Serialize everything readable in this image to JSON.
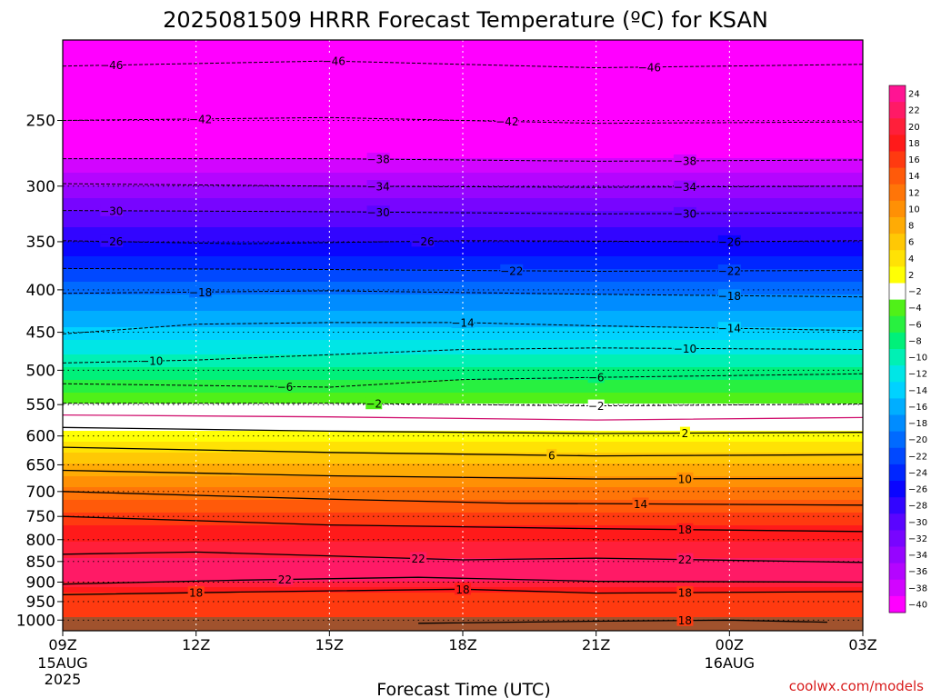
{
  "chart_data": {
    "type": "heatmap",
    "title": "2025081509 HRRR Forecast Temperature (ºC) for KSAN",
    "xlabel": "Forecast Time (UTC)",
    "ylabel": "",
    "credit": "coolwx.com/models",
    "x_ticks": [
      {
        "hour": 0,
        "label": "09Z",
        "sub1": "15AUG",
        "sub2": "2025"
      },
      {
        "hour": 3,
        "label": "12Z",
        "sub1": "",
        "sub2": ""
      },
      {
        "hour": 6,
        "label": "15Z",
        "sub1": "",
        "sub2": ""
      },
      {
        "hour": 9,
        "label": "18Z",
        "sub1": "",
        "sub2": ""
      },
      {
        "hour": 12,
        "label": "21Z",
        "sub1": "",
        "sub2": ""
      },
      {
        "hour": 15,
        "label": "00Z",
        "sub1": "16AUG",
        "sub2": ""
      },
      {
        "hour": 18,
        "label": "03Z",
        "sub1": "",
        "sub2": ""
      }
    ],
    "xlim": [
      0,
      18
    ],
    "y_ticks": [
      250,
      300,
      350,
      400,
      450,
      500,
      550,
      600,
      650,
      700,
      750,
      800,
      850,
      900,
      950,
      1000
    ],
    "ylim_pressure_hPa": [
      200,
      1030
    ],
    "y_scale": "log-pressure",
    "grid": true,
    "colorbar": {
      "levels": [
        24,
        22,
        20,
        18,
        16,
        14,
        12,
        10,
        8,
        6,
        4,
        2,
        -2,
        -4,
        -6,
        -8,
        -10,
        -12,
        -14,
        -16,
        -18,
        -20,
        -22,
        -24,
        -26,
        -28,
        -30,
        -32,
        -34,
        -36,
        -38,
        -40
      ],
      "labels": [
        "24",
        "22",
        "20",
        "18",
        "16",
        "14",
        "12",
        "10",
        "8",
        "6",
        "4",
        "2",
        "−2",
        "−4",
        "−6",
        "−8",
        "−10",
        "−12",
        "−14",
        "−16",
        "−18",
        "−20",
        "−22",
        "−24",
        "−26",
        "−28",
        "−30",
        "−32",
        "−34",
        "−36",
        "−38",
        "−40"
      ],
      "colors": [
        "#ff1493",
        "#ff1a66",
        "#ff1f3a",
        "#ff1a1a",
        "#ff3a10",
        "#ff5a0a",
        "#ff7508",
        "#ff9005",
        "#ffab05",
        "#ffc805",
        "#ffe205",
        "#ffff05",
        "#ffffff",
        "#50f018",
        "#28f040",
        "#00f07a",
        "#00f0b4",
        "#00e6e6",
        "#00d2ff",
        "#00aeff",
        "#008cff",
        "#006aff",
        "#0048ff",
        "#0026ff",
        "#0a05ff",
        "#3205ff",
        "#5a05ff",
        "#7805ff",
        "#9605ff",
        "#b405ff",
        "#d205ff",
        "#ff00ff"
      ]
    },
    "isotherms": [
      {
        "temp": -46,
        "label": "−46",
        "style": "dashed",
        "points": [
          [
            0,
            215
          ],
          [
            6,
            212
          ],
          [
            12,
            216
          ],
          [
            18,
            214
          ]
        ],
        "label_hours": [
          1.1,
          6.1,
          13.2
        ]
      },
      {
        "temp": -42,
        "label": "−42",
        "style": "dashed",
        "points": [
          [
            0,
            250
          ],
          [
            6,
            248
          ],
          [
            12,
            252
          ],
          [
            18,
            251
          ]
        ],
        "label_hours": [
          3.1,
          10.0
        ]
      },
      {
        "temp": -38,
        "label": "−38",
        "style": "dashed",
        "points": [
          [
            0,
            278
          ],
          [
            6,
            278
          ],
          [
            12,
            280
          ],
          [
            18,
            279
          ]
        ],
        "label_hours": [
          7.1,
          14.0
        ]
      },
      {
        "temp": -34,
        "label": "−34",
        "style": "dashed",
        "points": [
          [
            0,
            298
          ],
          [
            6,
            300
          ],
          [
            12,
            301
          ],
          [
            18,
            300
          ]
        ],
        "label_hours": [
          7.1,
          14.0
        ]
      },
      {
        "temp": -30,
        "label": "−30",
        "style": "dashed",
        "points": [
          [
            0,
            321
          ],
          [
            6,
            322
          ],
          [
            12,
            324
          ],
          [
            18,
            323
          ]
        ],
        "label_hours": [
          1.1,
          7.1,
          14.0
        ]
      },
      {
        "temp": -26,
        "label": "−26",
        "style": "dashed",
        "points": [
          [
            0,
            349
          ],
          [
            4,
            352
          ],
          [
            9,
            349
          ],
          [
            15,
            350
          ],
          [
            18,
            349
          ]
        ],
        "label_hours": [
          1.1,
          8.1,
          15.0
        ]
      },
      {
        "temp": -22,
        "label": "−22",
        "style": "dashed",
        "points": [
          [
            0,
            377
          ],
          [
            6,
            378
          ],
          [
            12,
            380
          ],
          [
            18,
            379
          ]
        ],
        "label_hours": [
          10.1,
          15.0
        ]
      },
      {
        "temp": -18,
        "label": "−18",
        "style": "dashed",
        "points": [
          [
            0,
            404
          ],
          [
            6,
            401
          ],
          [
            12,
            405
          ],
          [
            18,
            408
          ]
        ],
        "label_hours": [
          3.1,
          15.0
        ]
      },
      {
        "temp": -14,
        "label": "−14",
        "style": "dashed",
        "points": [
          [
            0,
            452
          ],
          [
            3,
            440
          ],
          [
            6,
            438
          ],
          [
            9,
            438
          ],
          [
            12,
            442
          ],
          [
            18,
            448
          ]
        ],
        "label_hours": [
          9.0,
          15.0
        ]
      },
      {
        "temp": -10,
        "label": "−10",
        "style": "dashed",
        "points": [
          [
            0,
            490
          ],
          [
            3,
            486
          ],
          [
            9,
            472
          ],
          [
            12,
            470
          ],
          [
            18,
            472
          ]
        ],
        "label_hours": [
          2.0,
          14.0
        ]
      },
      {
        "temp": -6,
        "label": "−6",
        "style": "dashed",
        "points": [
          [
            0,
            519
          ],
          [
            6,
            524
          ],
          [
            9,
            513
          ],
          [
            12,
            510
          ],
          [
            18,
            505
          ]
        ],
        "label_hours": [
          5.0,
          12.0
        ]
      },
      {
        "temp": -2,
        "label": "−2",
        "style": "dashed",
        "points": [
          [
            0,
            548
          ],
          [
            6,
            548
          ],
          [
            12,
            552
          ],
          [
            18,
            549
          ]
        ],
        "label_hours": [
          7.0,
          12.0
        ]
      },
      {
        "temp": 0,
        "label": "",
        "style": "pink",
        "points": [
          [
            0,
            566
          ],
          [
            6,
            569
          ],
          [
            12,
            574
          ],
          [
            18,
            570
          ]
        ],
        "label_hours": []
      },
      {
        "temp": 2,
        "label": "2",
        "style": "solid",
        "points": [
          [
            0,
            586
          ],
          [
            6,
            592
          ],
          [
            12,
            596
          ],
          [
            18,
            594
          ]
        ],
        "label_hours": [
          14.0
        ]
      },
      {
        "temp": 6,
        "label": "6",
        "style": "solid",
        "points": [
          [
            0,
            619
          ],
          [
            6,
            628
          ],
          [
            12,
            634
          ],
          [
            18,
            632
          ]
        ],
        "label_hours": [
          11.0
        ]
      },
      {
        "temp": 10,
        "label": "10",
        "style": "solid",
        "points": [
          [
            0,
            660
          ],
          [
            6,
            670
          ],
          [
            12,
            676
          ],
          [
            18,
            675
          ]
        ],
        "label_hours": [
          14.0
        ]
      },
      {
        "temp": 14,
        "label": "14",
        "style": "solid",
        "points": [
          [
            0,
            700
          ],
          [
            6,
            715
          ],
          [
            10,
            723
          ],
          [
            18,
            727
          ]
        ],
        "label_hours": [
          13.0
        ]
      },
      {
        "temp": 18,
        "label": "18",
        "style": "solid",
        "points": [
          [
            0,
            750
          ],
          [
            6,
            768
          ],
          [
            12,
            776
          ],
          [
            18,
            782
          ]
        ],
        "label_hours": [
          14.0
        ]
      },
      {
        "temp": 22,
        "label": "22",
        "style": "solid",
        "points": [
          [
            0,
            833
          ],
          [
            3,
            828
          ],
          [
            9,
            846
          ],
          [
            12,
            842
          ],
          [
            18,
            852
          ]
        ],
        "label_hours": [
          8.0,
          14.0
        ]
      },
      {
        "temp": 22,
        "label": "22",
        "style": "solid",
        "points": [
          [
            0,
            905
          ],
          [
            4,
            895
          ],
          [
            8,
            888
          ],
          [
            12,
            898
          ],
          [
            18,
            900
          ]
        ],
        "label_hours": [
          5.0
        ]
      },
      {
        "temp": 18,
        "label": "18",
        "style": "solid",
        "points": [
          [
            0,
            932
          ],
          [
            4,
            925
          ],
          [
            9,
            918
          ],
          [
            12,
            928
          ],
          [
            18,
            924
          ]
        ],
        "label_hours": [
          3.0,
          9.0,
          14.0
        ]
      },
      {
        "temp": 18,
        "label": "18",
        "style": "solid",
        "points": [
          [
            8,
            1009
          ],
          [
            12,
            1003
          ],
          [
            15,
            1000
          ],
          [
            17.2,
            1006
          ]
        ],
        "label_hours": [
          14.0
        ]
      }
    ],
    "temperature_profile": [
      {
        "p": 200,
        "t": -48
      },
      {
        "p": 215,
        "t": -46
      },
      {
        "p": 250,
        "t": -42
      },
      {
        "p": 278,
        "t": -38
      },
      {
        "p": 299,
        "t": -34
      },
      {
        "p": 322,
        "t": -30
      },
      {
        "p": 350,
        "t": -26
      },
      {
        "p": 378,
        "t": -22
      },
      {
        "p": 405,
        "t": -18
      },
      {
        "p": 443,
        "t": -14
      },
      {
        "p": 478,
        "t": -10
      },
      {
        "p": 514,
        "t": -6
      },
      {
        "p": 549,
        "t": -2
      },
      {
        "p": 570,
        "t": 0
      },
      {
        "p": 592,
        "t": 2
      },
      {
        "p": 628,
        "t": 6
      },
      {
        "p": 670,
        "t": 10
      },
      {
        "p": 715,
        "t": 14
      },
      {
        "p": 768,
        "t": 18
      },
      {
        "p": 840,
        "t": 22
      },
      {
        "p": 870,
        "t": 24
      },
      {
        "p": 900,
        "t": 22
      },
      {
        "p": 925,
        "t": 18
      },
      {
        "p": 1000,
        "t": 17
      }
    ]
  }
}
